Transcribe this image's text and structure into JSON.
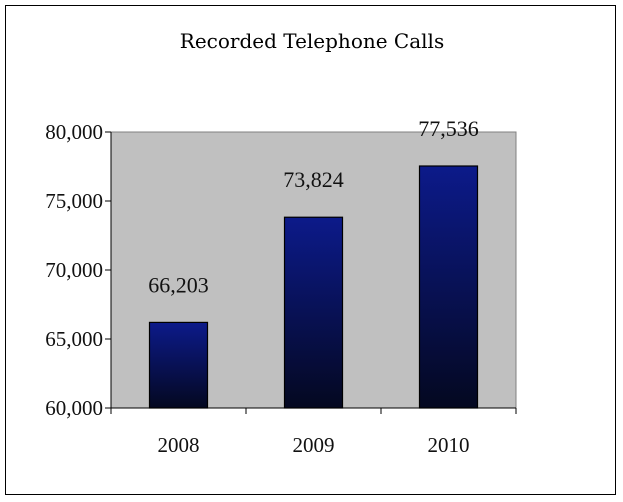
{
  "chart_data": {
    "type": "bar",
    "title": "Recorded Telephone Calls",
    "categories": [
      "2008",
      "2009",
      "2010"
    ],
    "values": [
      66203,
      73824,
      77536
    ],
    "data_labels": [
      "66,203",
      "73,824",
      "77,536"
    ],
    "ylim": [
      60000,
      80000
    ],
    "yticks": [
      60000,
      65000,
      70000,
      75000,
      80000
    ],
    "ytick_labels": [
      "60,000",
      "65,000",
      "70,000",
      "75,000",
      "80,000"
    ],
    "xlabel": "",
    "ylabel": "",
    "grid": false,
    "legend": "none",
    "colors": {
      "plot_background": "#c0c0c0",
      "bar_top": "#0c1a8a",
      "bar_bottom": "#040820"
    }
  }
}
